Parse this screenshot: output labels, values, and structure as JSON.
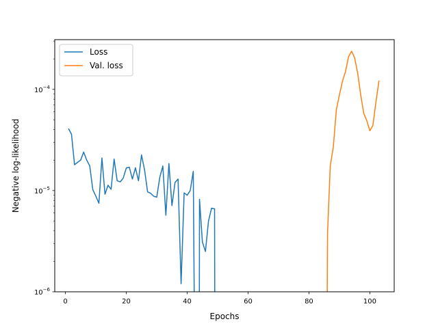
{
  "chart_data": {
    "type": "line",
    "title": "",
    "xlabel": "Epochs",
    "ylabel": "Negative log-likelihood",
    "xlim": [
      -3.5,
      108
    ],
    "ylim": [
      1e-06,
      0.00031
    ],
    "yscale": "log",
    "grid": false,
    "legend_position": "top-left",
    "x_ticks": [
      {
        "value": 0,
        "label": "0"
      },
      {
        "value": 20,
        "label": "20"
      },
      {
        "value": 40,
        "label": "40"
      },
      {
        "value": 60,
        "label": "60"
      },
      {
        "value": 80,
        "label": "80"
      },
      {
        "value": 100,
        "label": "100"
      }
    ],
    "y_ticks": [
      {
        "value": 1e-06,
        "base": "10",
        "exp": "−6"
      },
      {
        "value": 1e-05,
        "base": "10",
        "exp": "−5"
      },
      {
        "value": 0.0001,
        "base": "10",
        "exp": "−4"
      }
    ],
    "series": [
      {
        "name": "Loss",
        "color": "#1f77b4",
        "points": [
          [
            1,
            4.1e-05
          ],
          [
            2,
            3.6e-05
          ],
          [
            3,
            1.8e-05
          ],
          [
            4,
            1.9e-05
          ],
          [
            5,
            2e-05
          ],
          [
            6,
            2.4e-05
          ],
          [
            7,
            2e-05
          ],
          [
            8,
            1.75e-05
          ],
          [
            9,
            1.02e-05
          ],
          [
            10,
            8.8e-06
          ],
          [
            11,
            7.5e-06
          ],
          [
            12,
            2.1e-05
          ],
          [
            13,
            9.2e-06
          ],
          [
            14,
            1.13e-05
          ],
          [
            15,
            1.03e-05
          ],
          [
            16,
            2.05e-05
          ],
          [
            17,
            1.25e-05
          ],
          [
            18,
            1.22e-05
          ],
          [
            19,
            1.33e-05
          ],
          [
            20,
            1.67e-05
          ],
          [
            21,
            1.7e-05
          ],
          [
            22,
            1.3e-05
          ],
          [
            23,
            1.68e-05
          ],
          [
            24,
            1.25e-05
          ],
          [
            25,
            2.25e-05
          ],
          [
            26,
            1.6e-05
          ],
          [
            27,
            9.7e-06
          ],
          [
            28,
            9.4e-06
          ],
          [
            29,
            8.8e-06
          ],
          [
            30,
            8.6e-06
          ],
          [
            31,
            1.35e-05
          ],
          [
            32,
            1.75e-05
          ],
          [
            33,
            5.7e-06
          ],
          [
            34,
            1.85e-05
          ],
          [
            35,
            7.1e-06
          ],
          [
            36,
            1.2e-05
          ],
          [
            37,
            1.3e-05
          ],
          [
            38,
            1.2e-06
          ],
          [
            39,
            9.5e-06
          ],
          [
            40,
            9e-06
          ],
          [
            41,
            1e-05
          ],
          [
            42,
            1.55e-05
          ],
          [
            42.3,
            1e-06
          ],
          [
            null,
            null
          ],
          [
            44,
            1e-06
          ],
          [
            44.05,
            8.2e-06
          ],
          [
            45,
            3.1e-06
          ],
          [
            46,
            2.5e-06
          ],
          [
            47,
            5e-06
          ],
          [
            48,
            6.7e-06
          ],
          [
            49,
            6.6e-06
          ],
          [
            49.05,
            1e-06
          ]
        ]
      },
      {
        "name": "Val. loss",
        "color": "#ff7f0e",
        "points": [
          [
            86,
            1e-06
          ],
          [
            86.1,
            3.8e-06
          ],
          [
            87,
            1.75e-05
          ],
          [
            88,
            2.7e-05
          ],
          [
            89,
            6.3e-05
          ],
          [
            90,
            8.8e-05
          ],
          [
            91,
            0.00012
          ],
          [
            92,
            0.00015
          ],
          [
            93,
            0.00021
          ],
          [
            94,
            0.000238
          ],
          [
            95,
            0.000205
          ],
          [
            96,
            0.000145
          ],
          [
            97,
            8.8e-05
          ],
          [
            98,
            5.8e-05
          ],
          [
            99,
            4.9e-05
          ],
          [
            100,
            3.9e-05
          ],
          [
            101,
            4.4e-05
          ],
          [
            102,
            7.5e-05
          ],
          [
            103,
            0.000122
          ]
        ]
      }
    ]
  }
}
